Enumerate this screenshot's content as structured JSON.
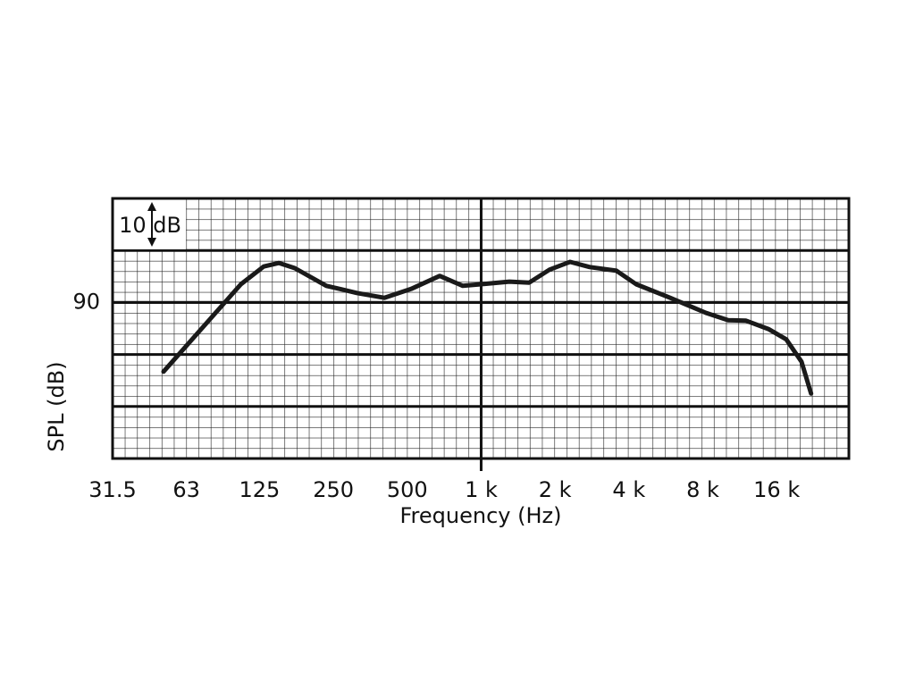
{
  "chart_data": {
    "type": "line",
    "x_label": "Frequency (Hz)",
    "y_label": "SPL (dB)",
    "annotation": "10 dB",
    "log_x": true,
    "grid": true,
    "xlim": [
      31.5,
      31500
    ],
    "ylim": [
      60,
      110
    ],
    "xticks": [
      31.5,
      63,
      125,
      250,
      500,
      {
        "value": 1000,
        "label": "1 k"
      },
      {
        "value": 2000,
        "label": "2 k"
      },
      {
        "value": 4000,
        "label": "4 k"
      },
      {
        "value": 8000,
        "label": "8 k"
      },
      {
        "value": 16000,
        "label": "16 k"
      }
    ],
    "yticks": [
      90
    ],
    "series": [
      {
        "color": "#1a1a1a",
        "x": [
          50.8,
          78.6,
          105,
          130,
          150,
          174,
          234,
          313,
          403,
          518,
          678,
          842,
          1000,
          1303,
          1568,
          1900,
          2303,
          2770,
          3560,
          4280,
          5890,
          8230,
          10150,
          12000,
          14800,
          17500,
          20200,
          22100
        ],
        "values": [
          76.7,
          86.8,
          93.5,
          96.9,
          97.6,
          96.6,
          93.2,
          91.8,
          90.9,
          92.6,
          95.1,
          93.2,
          93.5,
          94.0,
          93.8,
          96.3,
          97.8,
          96.8,
          96.1,
          93.5,
          90.9,
          88.0,
          86.6,
          86.5,
          84.9,
          82.9,
          78.6,
          72.5
        ]
      }
    ]
  }
}
